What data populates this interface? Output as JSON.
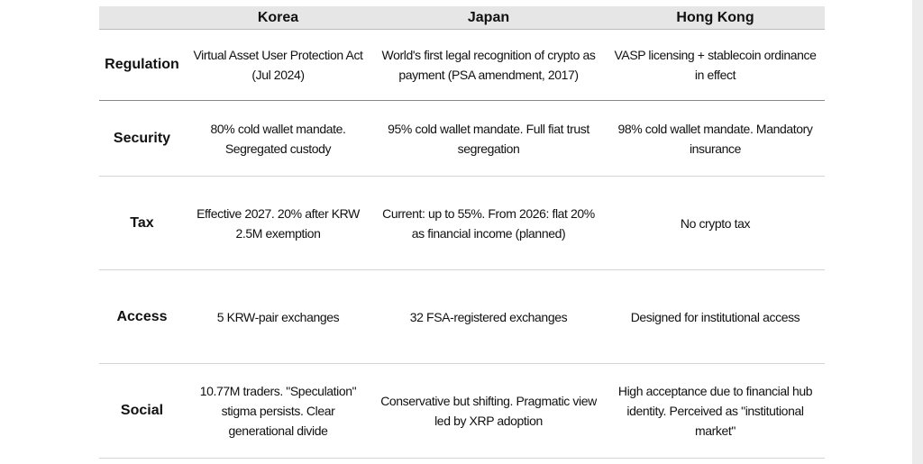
{
  "table": {
    "columns": [
      "Korea",
      "Japan",
      "Hong Kong"
    ],
    "rows": [
      {
        "label": "Regulation",
        "cells": [
          "Virtual Asset User Protection Act (Jul 2024)",
          "World's first legal recognition of crypto as payment (PSA amendment, 2017)",
          "VASP licensing + stablecoin ordinance in effect"
        ]
      },
      {
        "label": "Security",
        "cells": [
          "80% cold wallet mandate. Segregated custody",
          "95% cold wallet mandate. Full fiat trust segregation",
          "98% cold wallet mandate. Mandatory insurance"
        ]
      },
      {
        "label": "Tax",
        "cells": [
          "Effective 2027. 20% after KRW 2.5M exemption",
          "Current: up to 55%. From 2026: flat 20% as financial income (planned)",
          "No crypto tax"
        ]
      },
      {
        "label": "Access",
        "cells": [
          "5 KRW-pair exchanges",
          "32 FSA-registered exchanges",
          "Designed for institutional access"
        ]
      },
      {
        "label": "Social",
        "cells": [
          "10.77M traders. \"Speculation\" stigma persists. Clear generational divide",
          "Conservative but shifting. Pragmatic view led by XRP adoption",
          "High acceptance due to financial hub identity. Perceived as \"institutional market\""
        ]
      }
    ]
  }
}
